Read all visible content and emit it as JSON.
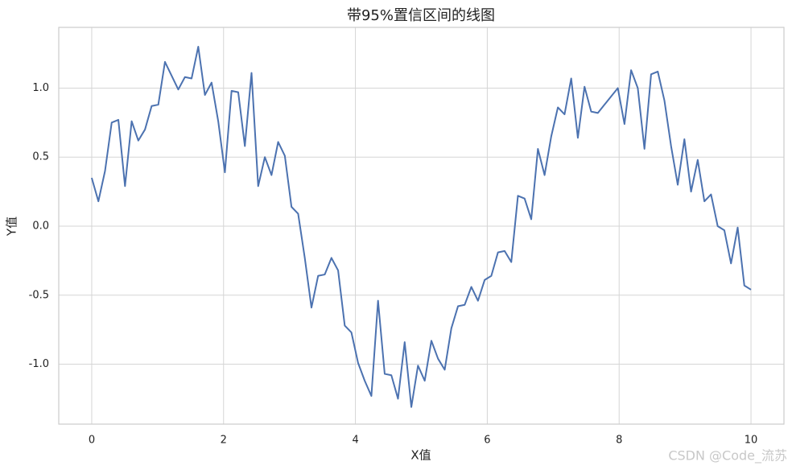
{
  "chart_data": {
    "type": "line",
    "title": "带95%置信区间的线图",
    "xlabel": "X值",
    "ylabel": "Y值",
    "annotation": "CSDN @Code_流苏",
    "x": [
      0,
      0.101,
      0.202,
      0.303,
      0.404,
      0.505,
      0.606,
      0.707,
      0.808,
      0.909,
      1.01,
      1.111,
      1.212,
      1.313,
      1.414,
      1.515,
      1.616,
      1.717,
      1.818,
      1.919,
      2.02,
      2.121,
      2.222,
      2.323,
      2.424,
      2.525,
      2.626,
      2.727,
      2.828,
      2.929,
      3.03,
      3.131,
      3.232,
      3.333,
      3.434,
      3.535,
      3.636,
      3.737,
      3.838,
      3.939,
      4.04,
      4.141,
      4.242,
      4.343,
      4.444,
      4.545,
      4.646,
      4.747,
      4.848,
      4.949,
      5.051,
      5.152,
      5.253,
      5.354,
      5.455,
      5.556,
      5.657,
      5.758,
      5.859,
      5.96,
      6.061,
      6.162,
      6.263,
      6.364,
      6.465,
      6.566,
      6.667,
      6.768,
      6.869,
      6.97,
      7.071,
      7.172,
      7.273,
      7.374,
      7.475,
      7.576,
      7.677,
      7.778,
      7.879,
      7.98,
      8.081,
      8.182,
      8.283,
      8.384,
      8.485,
      8.586,
      8.687,
      8.788,
      8.889,
      8.99,
      9.091,
      9.192,
      9.293,
      9.394,
      9.495,
      9.596,
      9.697,
      9.798,
      9.899,
      10
    ],
    "series": [
      {
        "color": "#4c72b0",
        "values": [
          0.35,
          0.18,
          0.4,
          0.75,
          0.77,
          0.29,
          0.76,
          0.62,
          0.7,
          0.87,
          0.88,
          1.19,
          1.09,
          0.99,
          1.08,
          1.07,
          1.3,
          0.95,
          1.04,
          0.76,
          0.39,
          0.98,
          0.97,
          0.58,
          1.11,
          0.29,
          0.5,
          0.37,
          0.61,
          0.51,
          0.14,
          0.09,
          -0.23,
          -0.59,
          -0.36,
          -0.35,
          -0.23,
          -0.32,
          -0.72,
          -0.77,
          -0.99,
          -1.12,
          -1.23,
          -0.54,
          -1.07,
          -1.08,
          -1.25,
          -0.84,
          -1.31,
          -1.01,
          -1.12,
          -0.83,
          -0.96,
          -1.04,
          -0.74,
          -0.58,
          -0.57,
          -0.44,
          -0.54,
          -0.39,
          -0.36,
          -0.19,
          -0.18,
          -0.26,
          0.22,
          0.2,
          0.05,
          0.56,
          0.37,
          0.65,
          0.86,
          0.81,
          1.07,
          0.64,
          1.01,
          0.83,
          0.82,
          0.88,
          0.94,
          1.0,
          0.74,
          1.13,
          1.0,
          0.56,
          1.1,
          1.12,
          0.91,
          0.58,
          0.3,
          0.63,
          0.25,
          0.48,
          0.18,
          0.23,
          0.0,
          -0.03,
          -0.27,
          -0.01,
          -0.43,
          -0.46
        ]
      }
    ],
    "xlim": [
      -0.5,
      10.5
    ],
    "xticks": [
      0,
      2,
      4,
      6,
      8,
      10
    ],
    "ylim": [
      -1.434,
      1.44
    ],
    "yticks": [
      {
        "value": -1,
        "label": "-1.0"
      },
      -0.5,
      {
        "value": 0,
        "label": "0.0"
      },
      0.5,
      {
        "value": 1,
        "label": "1.0"
      }
    ],
    "grid": true
  }
}
